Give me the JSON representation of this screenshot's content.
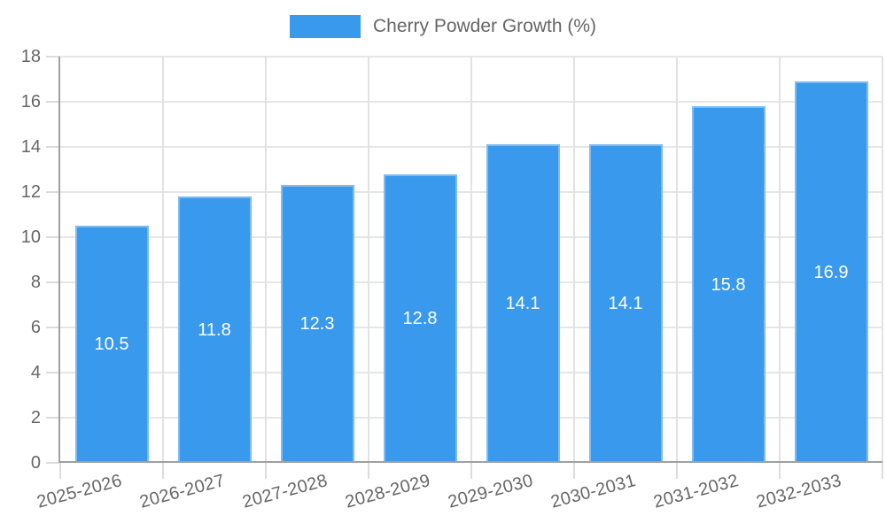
{
  "legend": {
    "series_label": "Cherry Powder Growth (%)"
  },
  "chart_data": {
    "type": "bar",
    "title": "Cherry Powder Growth (%)",
    "categories": [
      "2025-2026",
      "2026-2027",
      "2027-2028",
      "2028-2029",
      "2029-2030",
      "2030-2031",
      "2031-2032",
      "2032-2033"
    ],
    "series": [
      {
        "name": "Cherry Powder Growth (%)",
        "values": [
          10.5,
          11.8,
          12.3,
          12.8,
          14.1,
          14.1,
          15.8,
          16.9
        ]
      }
    ],
    "data_labels": [
      "10.5",
      "11.8",
      "12.3",
      "12.8",
      "14.1",
      "14.1",
      "15.8",
      "16.9"
    ],
    "xlabel": "",
    "ylabel": "",
    "ylim": [
      0,
      18
    ],
    "ytick_step": 2,
    "yticks": [
      0,
      2,
      4,
      6,
      8,
      10,
      12,
      14,
      16,
      18
    ],
    "grid": true,
    "legend_position": "top",
    "x_label_rotation_deg": -15,
    "colors": {
      "bar": "#3999EC",
      "data_label": "#FFFFFF",
      "axis_text": "#666666",
      "axis_line": "#A0A0A0",
      "gridline": "#E6E6E6"
    }
  }
}
